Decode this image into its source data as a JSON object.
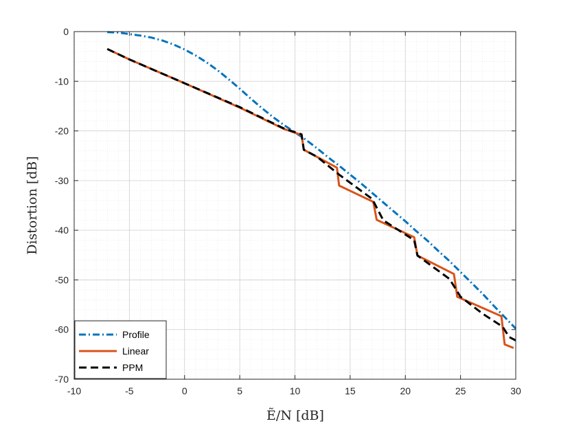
{
  "chart_data": {
    "type": "line",
    "xlabel": "Ẽ/N [dB]",
    "ylabel": "Distortion [dB]",
    "xlim": [
      -10,
      30
    ],
    "ylim": [
      -70,
      0
    ],
    "x_ticks": [
      -10,
      -5,
      0,
      5,
      10,
      15,
      20,
      25,
      30
    ],
    "y_ticks": [
      0,
      -10,
      -20,
      -30,
      -40,
      -50,
      -60,
      -70
    ],
    "x_tick_labels": [
      "-10",
      "-5",
      "0",
      "5",
      "10",
      "15",
      "20",
      "25",
      "30"
    ],
    "y_tick_labels": [
      "0",
      "-10",
      "-20",
      "-30",
      "-40",
      "-50",
      "-60",
      "-70"
    ],
    "grid": true,
    "minor_grid": true,
    "legend_position": "bottom-left",
    "series": [
      {
        "name": "Profile",
        "color": "#0072BD",
        "style": "dashdot",
        "points": [
          [
            -7,
            -0.1
          ],
          [
            -6,
            -0.2
          ],
          [
            -5,
            -0.5
          ],
          [
            -4,
            -0.8
          ],
          [
            -3,
            -1.2
          ],
          [
            -2,
            -1.8
          ],
          [
            -1,
            -2.6
          ],
          [
            0,
            -3.6
          ],
          [
            1,
            -4.8
          ],
          [
            2,
            -6.2
          ],
          [
            3,
            -7.8
          ],
          [
            4,
            -9.6
          ],
          [
            5,
            -11.5
          ],
          [
            6,
            -13.5
          ],
          [
            7,
            -15.4
          ],
          [
            8,
            -17.2
          ],
          [
            9,
            -18.8
          ],
          [
            10,
            -20.3
          ],
          [
            11,
            -21.8
          ],
          [
            12,
            -23.5
          ],
          [
            13,
            -25.3
          ],
          [
            14,
            -27.0
          ],
          [
            15,
            -28.8
          ],
          [
            16,
            -30.6
          ],
          [
            17,
            -32.5
          ],
          [
            18,
            -34.4
          ],
          [
            19,
            -36.3
          ],
          [
            20,
            -38.2
          ],
          [
            21,
            -40.2
          ],
          [
            22,
            -42.1
          ],
          [
            23,
            -44.2
          ],
          [
            24,
            -46.2
          ],
          [
            25,
            -48.4
          ],
          [
            26,
            -50.6
          ],
          [
            27,
            -52.8
          ],
          [
            28,
            -55.2
          ],
          [
            29,
            -57.5
          ],
          [
            30,
            -59.8
          ]
        ]
      },
      {
        "name": "Linear",
        "color": "#D95319",
        "style": "solid",
        "points": [
          [
            -7,
            -3.5
          ],
          [
            -5,
            -5.6
          ],
          [
            0,
            -10.4
          ],
          [
            5,
            -15.3
          ],
          [
            9,
            -19.6
          ],
          [
            10.6,
            -20.8
          ],
          [
            10.8,
            -23.8
          ],
          [
            13.8,
            -27.4
          ],
          [
            14.0,
            -31.0
          ],
          [
            17.1,
            -34.3
          ],
          [
            17.4,
            -37.9
          ],
          [
            20.8,
            -41.4
          ],
          [
            21.1,
            -45.1
          ],
          [
            24.4,
            -48.8
          ],
          [
            24.7,
            -53.4
          ],
          [
            28.7,
            -57.3
          ],
          [
            29.0,
            -63.0
          ],
          [
            29.8,
            -63.7
          ]
        ]
      },
      {
        "name": "PPM",
        "color": "#000000",
        "style": "dashed",
        "points": [
          [
            -7,
            -3.5
          ],
          [
            -5,
            -5.6
          ],
          [
            0,
            -10.4
          ],
          [
            5,
            -15.2
          ],
          [
            9,
            -19.5
          ],
          [
            10.6,
            -20.7
          ],
          [
            10.8,
            -23.8
          ],
          [
            12,
            -25.2
          ],
          [
            14,
            -28.8
          ],
          [
            17,
            -33.7
          ],
          [
            18,
            -38.0
          ],
          [
            20.8,
            -42.0
          ],
          [
            21.1,
            -45.1
          ],
          [
            24,
            -49.8
          ],
          [
            25,
            -53.4
          ],
          [
            27,
            -56.8
          ],
          [
            28.8,
            -59.4
          ],
          [
            29.4,
            -61.5
          ],
          [
            30,
            -62.2
          ]
        ]
      }
    ]
  }
}
